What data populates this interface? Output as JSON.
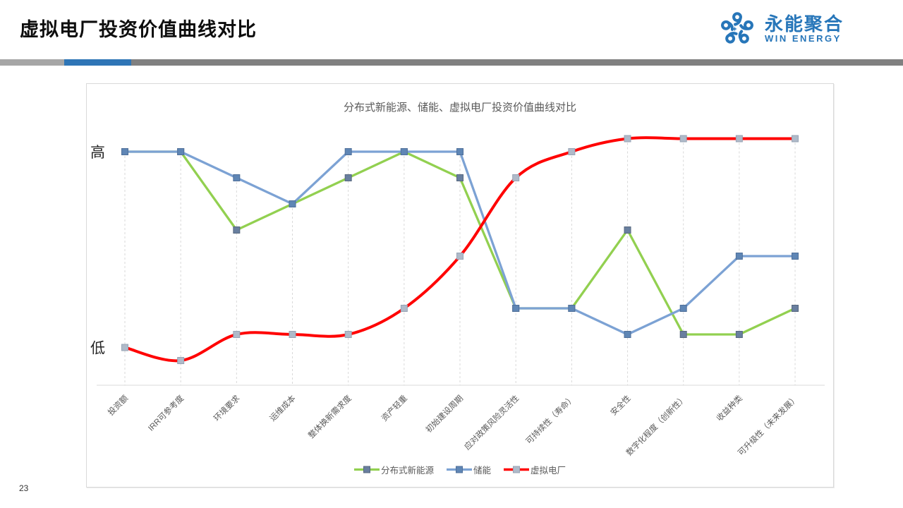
{
  "page": {
    "number": "23"
  },
  "header": {
    "title": "虚拟电厂投资价值曲线对比"
  },
  "logo": {
    "name_cn": "永能聚合",
    "name_en": "WIN ENERGY",
    "color": "#2776B9"
  },
  "theme": {
    "accent_bar_colors": [
      "#A6A6A6",
      "#2E75B6",
      "#808080"
    ],
    "accent_bar_widths": [
      91,
      95,
      1094
    ],
    "card_border": "#D9D9D9",
    "gridline_color": "#D9D9D9",
    "axis_color": "#D9D9D9",
    "text_muted": "#595959"
  },
  "chart_data": {
    "type": "line",
    "title": "分布式新能源、储能、虚拟电厂投资价值曲线对比",
    "y_axis": {
      "high_label": "高",
      "low_label": "低",
      "range": [
        0,
        9
      ],
      "numeric_ticks_hidden": true
    },
    "x_axis": {
      "label_rotation_deg": -45
    },
    "grid": "vertical-dashed-drop-lines",
    "legend_position": "bottom",
    "categories": [
      "投资额",
      "IRR可参考度",
      "环境要求",
      "运维成本",
      "整体换新需求度",
      "资产轻重",
      "初始建设周期",
      "应对政策风险灵活性",
      "可持续性（寿命）",
      "安全性",
      "数字化程度（创新性）",
      "收益种类",
      "可升级性（未来发展）"
    ],
    "series": [
      {
        "name": "分布式新能源",
        "color": "#92D050",
        "marker_fill": "#697F9F",
        "marker_stroke": "#57687F",
        "smooth": false,
        "values": [
          8,
          8,
          5,
          6,
          7,
          8,
          7,
          2,
          2,
          5,
          1,
          1,
          2
        ]
      },
      {
        "name": "储能",
        "color": "#7CA2D4",
        "marker_fill": "#5F86B5",
        "marker_stroke": "#4F6F99",
        "smooth": false,
        "values": [
          8,
          8,
          7,
          6,
          8,
          8,
          8,
          2,
          2,
          1,
          2,
          4,
          4
        ]
      },
      {
        "name": "虚拟电厂",
        "color": "#FF0000",
        "marker_fill": "#AFBAC9",
        "marker_stroke": "#97A4B5",
        "smooth": true,
        "values": [
          0.5,
          0,
          1,
          1,
          1,
          2,
          4,
          7,
          8,
          8.5,
          8.5,
          8.5,
          8.5
        ]
      }
    ]
  }
}
